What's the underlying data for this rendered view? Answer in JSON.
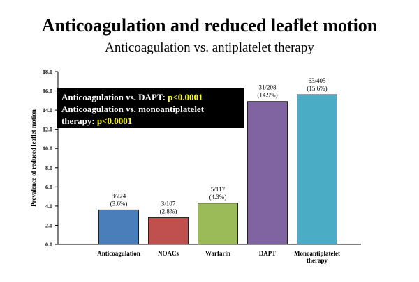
{
  "header": {
    "title": "Anticoagulation and reduced leaflet motion",
    "subtitle": "Anticoagulation vs. antiplatelet therapy"
  },
  "annotation": {
    "line1_text": "Anticoagulation vs. DAPT: ",
    "line1_value": "p<0.0001",
    "line2_text": "Anticoagulation vs. monoantiplatelet",
    "line3_text": "therapy: ",
    "line3_value": "p<0.0001"
  },
  "chart_data": {
    "type": "bar",
    "title": "Anticoagulation and reduced leaflet motion",
    "xlabel": "",
    "ylabel": "Prevalence of reduced leaflet motion",
    "ylim": [
      0,
      18
    ],
    "yticks": [
      "0.0",
      "2.0",
      "4.0",
      "6.0",
      "8.0",
      "10.0",
      "12.0",
      "14.0",
      "16.0",
      "18.0"
    ],
    "grid": false,
    "categories": [
      "Anticoagulation",
      "NOACs",
      "Warfarin",
      "DAPT",
      "Monoantiplatelet therapy"
    ],
    "category_lines": [
      [
        "Anticoagulation"
      ],
      [
        "NOACs"
      ],
      [
        "Warfarin"
      ],
      [
        "DAPT"
      ],
      [
        "Monoantiplatelet",
        "therapy"
      ]
    ],
    "values": [
      3.6,
      2.8,
      4.3,
      14.9,
      15.6
    ],
    "count_labels": [
      "8/224",
      "3/107",
      "5/117",
      "31/208",
      "63/405"
    ],
    "pct_labels": [
      "(3.6%)",
      "(2.8%)",
      "(4.3%)",
      "(14.9%)",
      "(15.6%)"
    ],
    "colors": [
      "#4a7ebb",
      "#c0504d",
      "#9bbb59",
      "#8064a2",
      "#4bacc6"
    ]
  }
}
